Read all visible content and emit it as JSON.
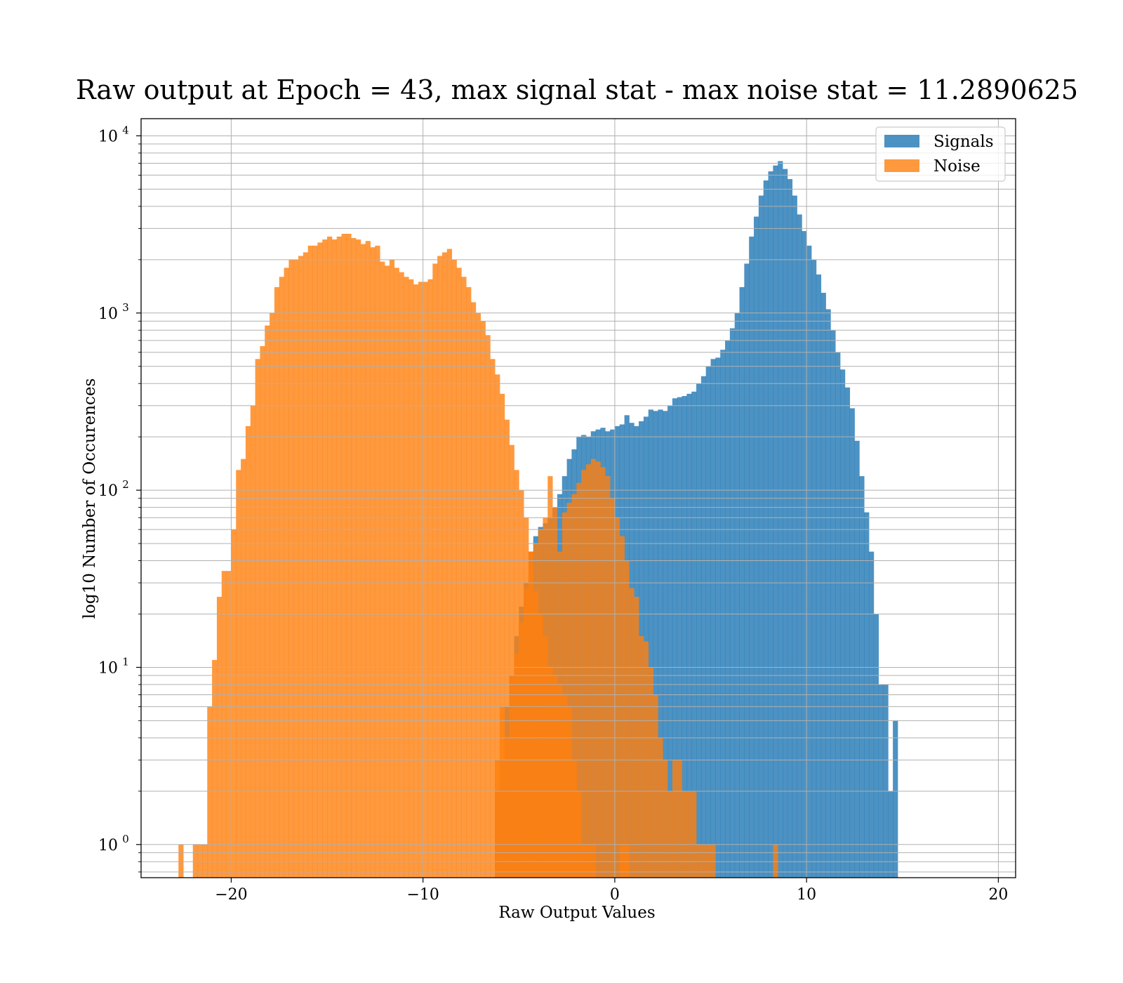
{
  "chart_data": {
    "type": "bar",
    "title": "Raw output at Epoch = 43, max signal stat - max noise stat = 11.2890625",
    "xlabel": "Raw Output Values",
    "ylabel": "log10 Number of Occurences",
    "xlim": [
      -24.7,
      20.9
    ],
    "ylim": [
      0.65,
      12500
    ],
    "yscale": "log",
    "grid": true,
    "legend_position": "upper-right",
    "x_ticks": [
      {
        "value": -20,
        "label": "−20"
      },
      {
        "value": -10,
        "label": "−10"
      },
      {
        "value": 0,
        "label": "0"
      },
      {
        "value": 10,
        "label": "10"
      },
      {
        "value": 20,
        "label": "20"
      }
    ],
    "y_ticks": [
      {
        "value": 1,
        "base": "10",
        "exp": "0"
      },
      {
        "value": 10,
        "base": "10",
        "exp": "1"
      },
      {
        "value": 100,
        "base": "10",
        "exp": "2"
      },
      {
        "value": 1000,
        "base": "10",
        "exp": "3"
      },
      {
        "value": 10000,
        "base": "10",
        "exp": "4"
      }
    ],
    "series": [
      {
        "name": "Signals",
        "color": "#1f77b4",
        "alpha": 0.8,
        "bin_start": -6.25,
        "bin_width": 0.25,
        "values": [
          2,
          3,
          6,
          9,
          15,
          22,
          30,
          45,
          55,
          62,
          65,
          70,
          80,
          95,
          120,
          150,
          170,
          200,
          205,
          200,
          215,
          220,
          225,
          215,
          220,
          230,
          235,
          265,
          240,
          230,
          245,
          260,
          285,
          280,
          285,
          280,
          300,
          330,
          335,
          340,
          350,
          360,
          400,
          440,
          500,
          550,
          560,
          620,
          700,
          820,
          1000,
          1400,
          1900,
          2700,
          3500,
          4600,
          5600,
          6300,
          6800,
          7200,
          6500,
          5700,
          4600,
          3600,
          2900,
          2400,
          2000,
          1650,
          1300,
          1050,
          800,
          600,
          480,
          380,
          290,
          190,
          120,
          75,
          45,
          20,
          8,
          8,
          2,
          5
        ]
      },
      {
        "name": "Noise",
        "color": "#ff7f0e",
        "alpha": 0.8,
        "bin_start": -22.75,
        "bin_width": 0.25,
        "values": [
          1,
          0,
          0,
          1,
          1,
          1,
          6,
          11,
          25,
          35,
          35,
          60,
          130,
          150,
          230,
          300,
          550,
          650,
          850,
          1000,
          1400,
          1600,
          1800,
          2000,
          2000,
          2100,
          2200,
          2400,
          2400,
          2500,
          2600,
          2700,
          2600,
          2700,
          2800,
          2800,
          2650,
          2600,
          2450,
          2550,
          2350,
          2400,
          1950,
          1850,
          2000,
          1800,
          1700,
          1600,
          1550,
          1450,
          1500,
          1500,
          1550,
          1900,
          2100,
          2200,
          2300,
          2000,
          1800,
          1600,
          1400,
          1150,
          1000,
          900,
          750,
          550,
          450,
          350,
          250,
          180,
          130,
          100,
          70,
          45,
          27,
          20,
          15,
          10,
          9,
          8,
          7,
          6,
          3,
          2,
          1,
          1,
          1,
          0,
          0,
          0,
          0,
          0,
          1,
          1,
          0,
          0,
          0,
          0,
          0,
          0,
          0,
          0,
          0,
          0,
          0,
          0,
          0,
          0,
          0,
          0,
          0,
          0,
          0,
          0,
          0,
          0,
          0,
          0,
          0,
          0,
          0,
          0,
          0,
          0,
          0,
          0,
          0,
          0,
          0,
          0,
          0,
          0,
          0,
          0,
          0,
          0
        ]
      },
      {
        "name": "",
        "color": "#ff7f0e",
        "alpha": 0.8,
        "bin_start": -6.25,
        "bin_width": 0.25,
        "values": [
          3,
          6,
          4,
          9,
          12,
          18,
          28,
          45,
          50,
          60,
          70,
          120,
          80,
          45,
          75,
          85,
          95,
          110,
          130,
          140,
          150,
          145,
          135,
          120,
          90,
          70,
          55,
          40,
          28,
          25,
          15,
          14,
          10,
          7,
          4,
          3,
          2,
          3,
          3,
          2,
          2,
          2,
          1,
          1,
          1,
          1,
          0,
          0,
          0,
          0,
          0,
          0,
          0,
          0,
          0,
          0,
          0,
          0,
          1,
          0,
          0,
          0,
          0,
          0,
          0,
          0,
          0,
          0,
          0,
          0,
          0,
          0,
          0,
          0,
          0,
          0,
          0,
          0,
          0,
          0,
          0,
          0,
          0,
          0
        ]
      }
    ]
  }
}
